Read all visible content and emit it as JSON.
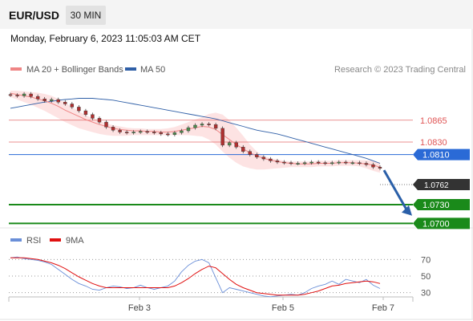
{
  "header": {
    "symbol": "EUR/USD",
    "timeframe": "30 MIN"
  },
  "timestamp": "Monday, February 6, 2023 11:05:03 AM CET",
  "colors": {
    "ma20": "#ef8585",
    "ma50": "#2f5fa7",
    "band_fill": "#fde0e0",
    "resistance": "#e05555",
    "pivot": "#2a6ad6",
    "support": "#1a8a1a",
    "price_tag": "#333333",
    "rsi": "#6a8fd8",
    "rsi_ma": "#e01010",
    "candle_up": "#4e8f4e",
    "candle_down": "#b03030"
  },
  "chart_data": [
    {
      "type": "line",
      "title": "",
      "legend": [
        {
          "name": "MA 20 + Bollinger Bands",
          "color": "#ef8585"
        },
        {
          "name": "MA 50",
          "color": "#2f5fa7"
        }
      ],
      "legend_placement": "top-left",
      "credit": "Research © 2023 Trading Central",
      "x_ticks": [
        "Feb 3",
        "Feb 5",
        "Feb 7"
      ],
      "ylim": [
        1.0685,
        1.0925
      ],
      "price_series": [
        1.0905,
        1.0904,
        1.0907,
        1.0903,
        1.0899,
        1.0896,
        1.0898,
        1.0894,
        1.0891,
        1.0886,
        1.088,
        1.0874,
        1.0868,
        1.0862,
        1.0854,
        1.0849,
        1.0846,
        1.0845,
        1.0846,
        1.0847,
        1.0846,
        1.0845,
        1.0843,
        1.0842,
        1.0845,
        1.0848,
        1.0853,
        1.0857,
        1.0859,
        1.0858,
        1.0852,
        1.0825,
        1.0829,
        1.0822,
        1.0815,
        1.081,
        1.0806,
        1.0803,
        1.08,
        1.0798,
        1.0797,
        1.0796,
        1.0796,
        1.0797,
        1.0798,
        1.0797,
        1.0796,
        1.0797,
        1.0798,
        1.0797,
        1.0797,
        1.0796,
        1.0794,
        1.079,
        1.0788
      ],
      "ma20": [
        1.0908,
        1.0906,
        1.0904,
        1.0902,
        1.0899,
        1.0896,
        1.0892,
        1.0887,
        1.0881,
        1.0876,
        1.0871,
        1.0866,
        1.0862,
        1.0858,
        1.0855,
        1.0852,
        1.085,
        1.0849,
        1.0848,
        1.0848,
        1.0847,
        1.0847,
        1.0846,
        1.0846,
        1.0847,
        1.0849,
        1.0851,
        1.0853,
        1.0855,
        1.0854,
        1.085,
        1.0842,
        1.0834,
        1.0826,
        1.0819,
        1.0813,
        1.0808,
        1.0804,
        1.0801,
        1.0799,
        1.0797,
        1.0796,
        1.0795,
        1.0795,
        1.0795,
        1.0796,
        1.0796,
        1.0796,
        1.0797,
        1.0797,
        1.0797,
        1.0796,
        1.0795,
        1.0793,
        1.079
      ],
      "bb_upper": [
        1.0912,
        1.0912,
        1.0911,
        1.091,
        1.0909,
        1.0907,
        1.0904,
        1.0899,
        1.0893,
        1.0886,
        1.0879,
        1.0873,
        1.0868,
        1.0864,
        1.086,
        1.0857,
        1.0855,
        1.0853,
        1.0852,
        1.0852,
        1.0851,
        1.0851,
        1.0851,
        1.0852,
        1.0854,
        1.0858,
        1.0862,
        1.0866,
        1.087,
        1.0875,
        1.0877,
        1.0874,
        1.0865,
        1.0853,
        1.084,
        1.0826,
        1.0815,
        1.0808,
        1.0804,
        1.0802,
        1.08,
        1.0799,
        1.0799,
        1.0799,
        1.0799,
        1.08,
        1.08,
        1.08,
        1.0801,
        1.0801,
        1.0801,
        1.0801,
        1.0801,
        1.08,
        1.0797
      ],
      "bb_lower": [
        1.0902,
        1.0898,
        1.0894,
        1.089,
        1.0885,
        1.088,
        1.0874,
        1.0868,
        1.0862,
        1.0857,
        1.0852,
        1.0849,
        1.0846,
        1.0843,
        1.0841,
        1.084,
        1.084,
        1.084,
        1.0841,
        1.0841,
        1.0841,
        1.0841,
        1.0841,
        1.0841,
        1.0841,
        1.0841,
        1.0841,
        1.084,
        1.0839,
        1.0834,
        1.0826,
        1.0815,
        1.0805,
        1.0797,
        1.0791,
        1.0788,
        1.0786,
        1.0786,
        1.0787,
        1.0788,
        1.0789,
        1.079,
        1.079,
        1.079,
        1.079,
        1.0791,
        1.0791,
        1.0791,
        1.0792,
        1.0792,
        1.0792,
        1.0791,
        1.0788,
        1.0784,
        1.0781
      ],
      "ma50": [
        1.0884,
        1.0886,
        1.0888,
        1.089,
        1.0892,
        1.0894,
        1.0895,
        1.0897,
        1.0898,
        1.0899,
        1.09,
        1.09,
        1.09,
        1.0899,
        1.0898,
        1.0897,
        1.0895,
        1.0893,
        1.0891,
        1.0889,
        1.0887,
        1.0885,
        1.0883,
        1.0881,
        1.0879,
        1.0877,
        1.0875,
        1.0873,
        1.0871,
        1.0869,
        1.0867,
        1.0864,
        1.0861,
        1.0858,
        1.0855,
        1.0852,
        1.0849,
        1.0847,
        1.0845,
        1.0843,
        1.084,
        1.0837,
        1.0834,
        1.0831,
        1.0828,
        1.0825,
        1.0822,
        1.0819,
        1.0816,
        1.0813,
        1.081,
        1.0807,
        1.0804,
        1.08,
        1.0796
      ],
      "levels": [
        {
          "value": 1.0865,
          "label": "1.0865",
          "kind": "resistance"
        },
        {
          "value": 1.083,
          "label": "1.0830",
          "kind": "resistance"
        },
        {
          "value": 1.081,
          "label": "1.0810",
          "kind": "pivot"
        },
        {
          "value": 1.0762,
          "label": "1.0762",
          "kind": "last"
        },
        {
          "value": 1.073,
          "label": "1.0730",
          "kind": "support"
        },
        {
          "value": 1.07,
          "label": "1.0700",
          "kind": "support"
        }
      ],
      "forecast_arrow": {
        "from": 1.0785,
        "to": 1.072,
        "direction": "down"
      }
    },
    {
      "type": "line",
      "title": "",
      "legend": [
        {
          "name": "RSI",
          "color": "#6a8fd8"
        },
        {
          "name": "9MA",
          "color": "#e01010"
        }
      ],
      "ylim": [
        20,
        80
      ],
      "y_ticks": [
        "70",
        "50",
        "30"
      ],
      "rsi": [
        72,
        73,
        71,
        70,
        69,
        67,
        64,
        58,
        52,
        46,
        41,
        38,
        34,
        33,
        36,
        38,
        37,
        35,
        36,
        39,
        36,
        34,
        36,
        38,
        44,
        55,
        63,
        68,
        70,
        66,
        48,
        30,
        36,
        34,
        32,
        30,
        28,
        26,
        25,
        26,
        27,
        28,
        27,
        30,
        35,
        38,
        40,
        44,
        40,
        46,
        44,
        42,
        46,
        39,
        35
      ],
      "rsi_9ma": [
        72,
        72,
        72,
        71,
        70,
        68,
        66,
        63,
        59,
        54,
        49,
        45,
        41,
        38,
        36,
        36,
        36,
        36,
        36,
        36,
        36,
        36,
        36,
        36,
        38,
        42,
        47,
        53,
        58,
        62,
        60,
        53,
        46,
        40,
        36,
        33,
        30,
        29,
        28,
        27,
        27,
        27,
        27,
        28,
        30,
        32,
        35,
        38,
        39,
        41,
        42,
        43,
        44,
        43,
        41
      ]
    }
  ]
}
